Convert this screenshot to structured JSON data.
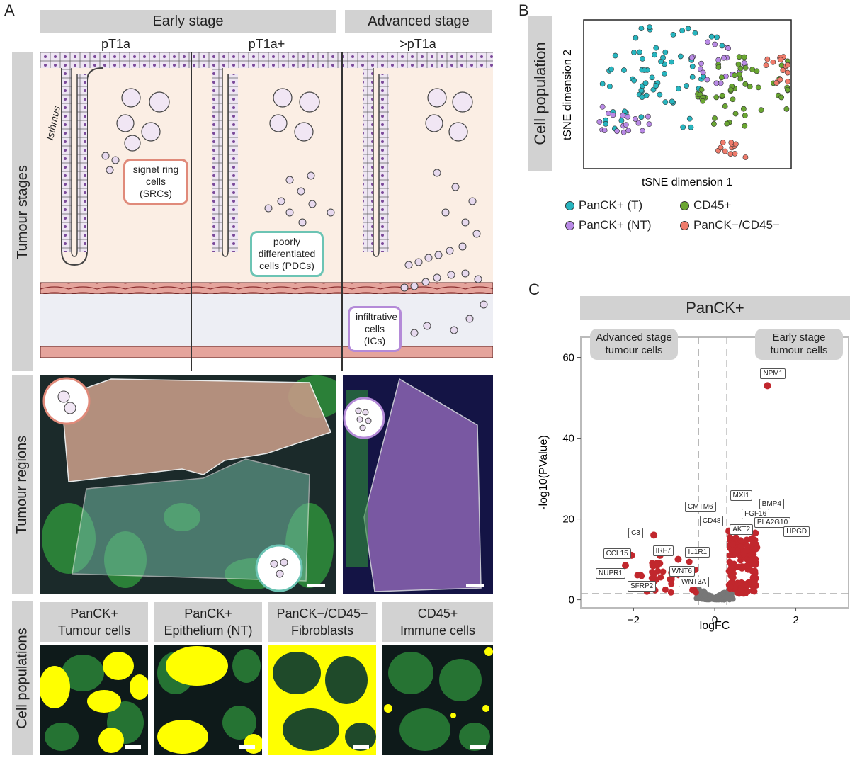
{
  "panel_letters": {
    "a": "A",
    "b": "B",
    "c": "C"
  },
  "panel_a": {
    "header_early": "Early stage",
    "header_advanced": "Advanced stage",
    "stages": [
      "pT1a",
      "pT1a+",
      ">pT1a"
    ],
    "row_labels": {
      "stages": "Tumour stages",
      "regions": "Tumour regions",
      "populations": "Cell populations"
    },
    "isthmus": "Isthmus",
    "callouts": {
      "src": "signet ring cells (SRCs)",
      "pdc": "poorly differentiated cells (PDCs)",
      "ic": "infiltrative cells (ICs)"
    },
    "populations": [
      {
        "line1": "PanCK+",
        "line2": "Tumour cells"
      },
      {
        "line1": "PanCK+",
        "line2": "Epithelium (NT)"
      },
      {
        "line1": "PanCK−/CD45−",
        "line2": "Fibroblasts"
      },
      {
        "line1": "CD45+",
        "line2": "Immune cells"
      }
    ],
    "colors": {
      "src": "#e08a7a",
      "pdc": "#6cc4b4",
      "ic": "#b48ad8",
      "tissue": "#fbeee4"
    }
  },
  "panel_b": {
    "side_label": "Cell population",
    "xlabel": "tSNE dimension 1",
    "ylabel": "tSNE dimension 2",
    "legend": [
      {
        "label": "PanCK+ (T)",
        "color": "#27b5bf"
      },
      {
        "label": "CD45+",
        "color": "#6aa632"
      },
      {
        "label": "PanCK+ (NT)",
        "color": "#b98ae6"
      },
      {
        "label": "PanCK−/CD45−",
        "color": "#ef7b6b"
      }
    ]
  },
  "chart_data": {
    "type": "scatter",
    "title": "PanCK+",
    "xlabel": "logFC",
    "ylabel": "-log10(PValue)",
    "xlim": [
      -3.3,
      3.3
    ],
    "ylim": [
      -2,
      65
    ],
    "xticks": [
      -2,
      0,
      2
    ],
    "yticks": [
      0,
      20,
      40,
      60
    ],
    "vlines": [
      -0.4,
      0.3
    ],
    "hline": 1.5,
    "annotations": [
      {
        "label": "Advanced stage tumour cells"
      },
      {
        "label": "Early stage tumour cells"
      }
    ],
    "highlight_color": "#c1272d",
    "background_color": "#777777",
    "labeled_genes": [
      {
        "gene": "NPM1",
        "x": 1.3,
        "y": 53
      },
      {
        "gene": "MXI1",
        "x": 0.55,
        "y": 18
      },
      {
        "gene": "CMTM6",
        "x": 0.35,
        "y": 17
      },
      {
        "gene": "FGF16",
        "x": 0.7,
        "y": 17
      },
      {
        "gene": "BMP4",
        "x": 0.85,
        "y": 18
      },
      {
        "gene": "CD48",
        "x": 0.4,
        "y": 17
      },
      {
        "gene": "AKT2",
        "x": 0.65,
        "y": 17
      },
      {
        "gene": "PLA2G10",
        "x": 0.8,
        "y": 17
      },
      {
        "gene": "HPGD",
        "x": 1.0,
        "y": 16.5
      },
      {
        "gene": "C3",
        "x": -1.5,
        "y": 16
      },
      {
        "gene": "CCL15",
        "x": -2.05,
        "y": 11
      },
      {
        "gene": "IRF7",
        "x": -1.35,
        "y": 11
      },
      {
        "gene": "IL1R1",
        "x": -0.9,
        "y": 10
      },
      {
        "gene": "NUPR1",
        "x": -2.2,
        "y": 8.5
      },
      {
        "gene": "WNT6",
        "x": -0.95,
        "y": 7
      },
      {
        "gene": "SFRP2",
        "x": -1.45,
        "y": 5
      },
      {
        "gene": "WNT3A",
        "x": -0.75,
        "y": 5
      }
    ]
  }
}
